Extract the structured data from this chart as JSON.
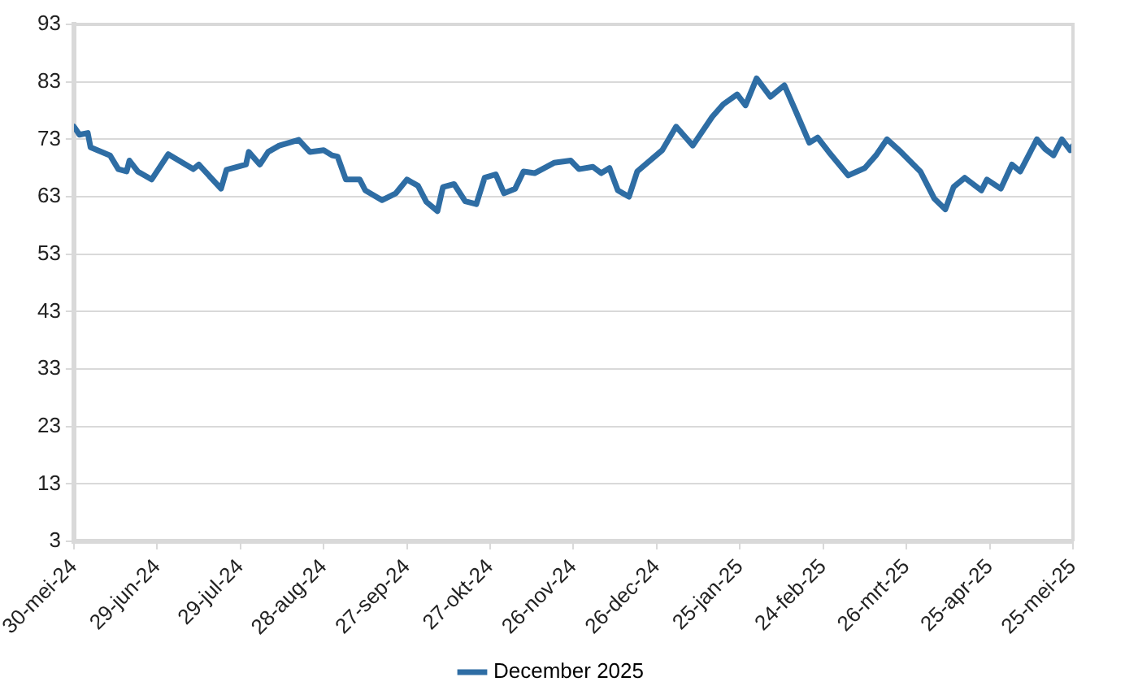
{
  "chart_data": {
    "type": "line",
    "legend": "bottom",
    "grid": "y",
    "marker": "none",
    "line_style": "solid",
    "x": [
      "2024-05-30",
      "2024-06-01",
      "2024-06-04",
      "2024-06-05",
      "2024-06-12",
      "2024-06-15",
      "2024-06-18",
      "2024-06-19",
      "2024-06-22",
      "2024-06-27",
      "2024-07-03",
      "2024-07-12",
      "2024-07-14",
      "2024-07-22",
      "2024-07-24",
      "2024-07-31",
      "2024-08-01",
      "2024-08-05",
      "2024-08-08",
      "2024-08-12",
      "2024-08-19",
      "2024-08-23",
      "2024-08-28",
      "2024-08-31",
      "2024-09-02",
      "2024-09-05",
      "2024-09-10",
      "2024-09-12",
      "2024-09-18",
      "2024-09-23",
      "2024-09-27",
      "2024-10-01",
      "2024-10-04",
      "2024-10-08",
      "2024-10-10",
      "2024-10-14",
      "2024-10-18",
      "2024-10-22",
      "2024-10-25",
      "2024-10-29",
      "2024-11-01",
      "2024-11-05",
      "2024-11-08",
      "2024-11-12",
      "2024-11-19",
      "2024-11-25",
      "2024-11-28",
      "2024-12-03",
      "2024-12-06",
      "2024-12-09",
      "2024-12-12",
      "2024-12-16",
      "2024-12-19",
      "2024-12-28",
      "2025-01-02",
      "2025-01-08",
      "2025-01-15",
      "2025-01-19",
      "2025-01-24",
      "2025-01-27",
      "2025-01-31",
      "2025-02-05",
      "2025-02-10",
      "2025-02-14",
      "2025-02-19",
      "2025-02-22",
      "2025-02-26",
      "2025-03-05",
      "2025-03-11",
      "2025-03-15",
      "2025-03-19",
      "2025-03-24",
      "2025-03-31",
      "2025-04-05",
      "2025-04-09",
      "2025-04-12",
      "2025-04-16",
      "2025-04-22",
      "2025-04-24",
      "2025-04-29",
      "2025-05-03",
      "2025-05-06",
      "2025-05-12",
      "2025-05-15",
      "2025-05-18",
      "2025-05-21",
      "2025-05-24",
      "2025-05-25"
    ],
    "series": [
      {
        "name": "December 2025",
        "color": "#2e6da4",
        "values": [
          75.2,
          73.8,
          74.1,
          71.6,
          70.2,
          67.8,
          67.4,
          69.3,
          67.4,
          66,
          70.4,
          67.8,
          68.6,
          64.4,
          67.7,
          68.6,
          70.8,
          68.6,
          70.8,
          71.9,
          72.9,
          70.8,
          71.1,
          70.2,
          70,
          66,
          66,
          64.1,
          62.4,
          63.6,
          66,
          64.9,
          62.1,
          60.5,
          64.7,
          65.2,
          62.2,
          61.7,
          66.3,
          66.9,
          63.6,
          64.4,
          67.4,
          67.1,
          68.9,
          69.3,
          67.8,
          68.2,
          67.1,
          68,
          64.1,
          63,
          67.4,
          71.1,
          75.2,
          71.9,
          76.9,
          79.1,
          80.8,
          78.9,
          83.6,
          80.4,
          82.4,
          78,
          72.4,
          73.3,
          70.8,
          66.7,
          68,
          70.2,
          73,
          70.8,
          67.4,
          62.7,
          60.8,
          64.7,
          66.3,
          64.1,
          66,
          64.4,
          68.6,
          67.4,
          73,
          71.3,
          70.2,
          73,
          71.1,
          71.9
        ]
      }
    ],
    "xlim": [
      "2024-05-30",
      "2025-05-25"
    ],
    "xticks": [
      {
        "value": "2024-05-30",
        "label": "30-mei-24"
      },
      {
        "value": "2024-06-29",
        "label": "29-jun-24"
      },
      {
        "value": "2024-07-29",
        "label": "29-jul-24"
      },
      {
        "value": "2024-08-28",
        "label": "28-aug-24"
      },
      {
        "value": "2024-09-27",
        "label": "27-sep-24"
      },
      {
        "value": "2024-10-27",
        "label": "27-okt-24"
      },
      {
        "value": "2024-11-26",
        "label": "26-nov-24"
      },
      {
        "value": "2024-12-26",
        "label": "26-dec-24"
      },
      {
        "value": "2025-01-25",
        "label": "25-jan-25"
      },
      {
        "value": "2025-02-24",
        "label": "24-feb-25"
      },
      {
        "value": "2025-03-26",
        "label": "26-mrt-25"
      },
      {
        "value": "2025-04-25",
        "label": "25-apr-25"
      },
      {
        "value": "2025-05-25",
        "label": "25-mei-25"
      }
    ],
    "ylim": [
      3,
      93
    ],
    "yticks": [
      3,
      13,
      23,
      33,
      43,
      53,
      63,
      73,
      83,
      93
    ]
  }
}
